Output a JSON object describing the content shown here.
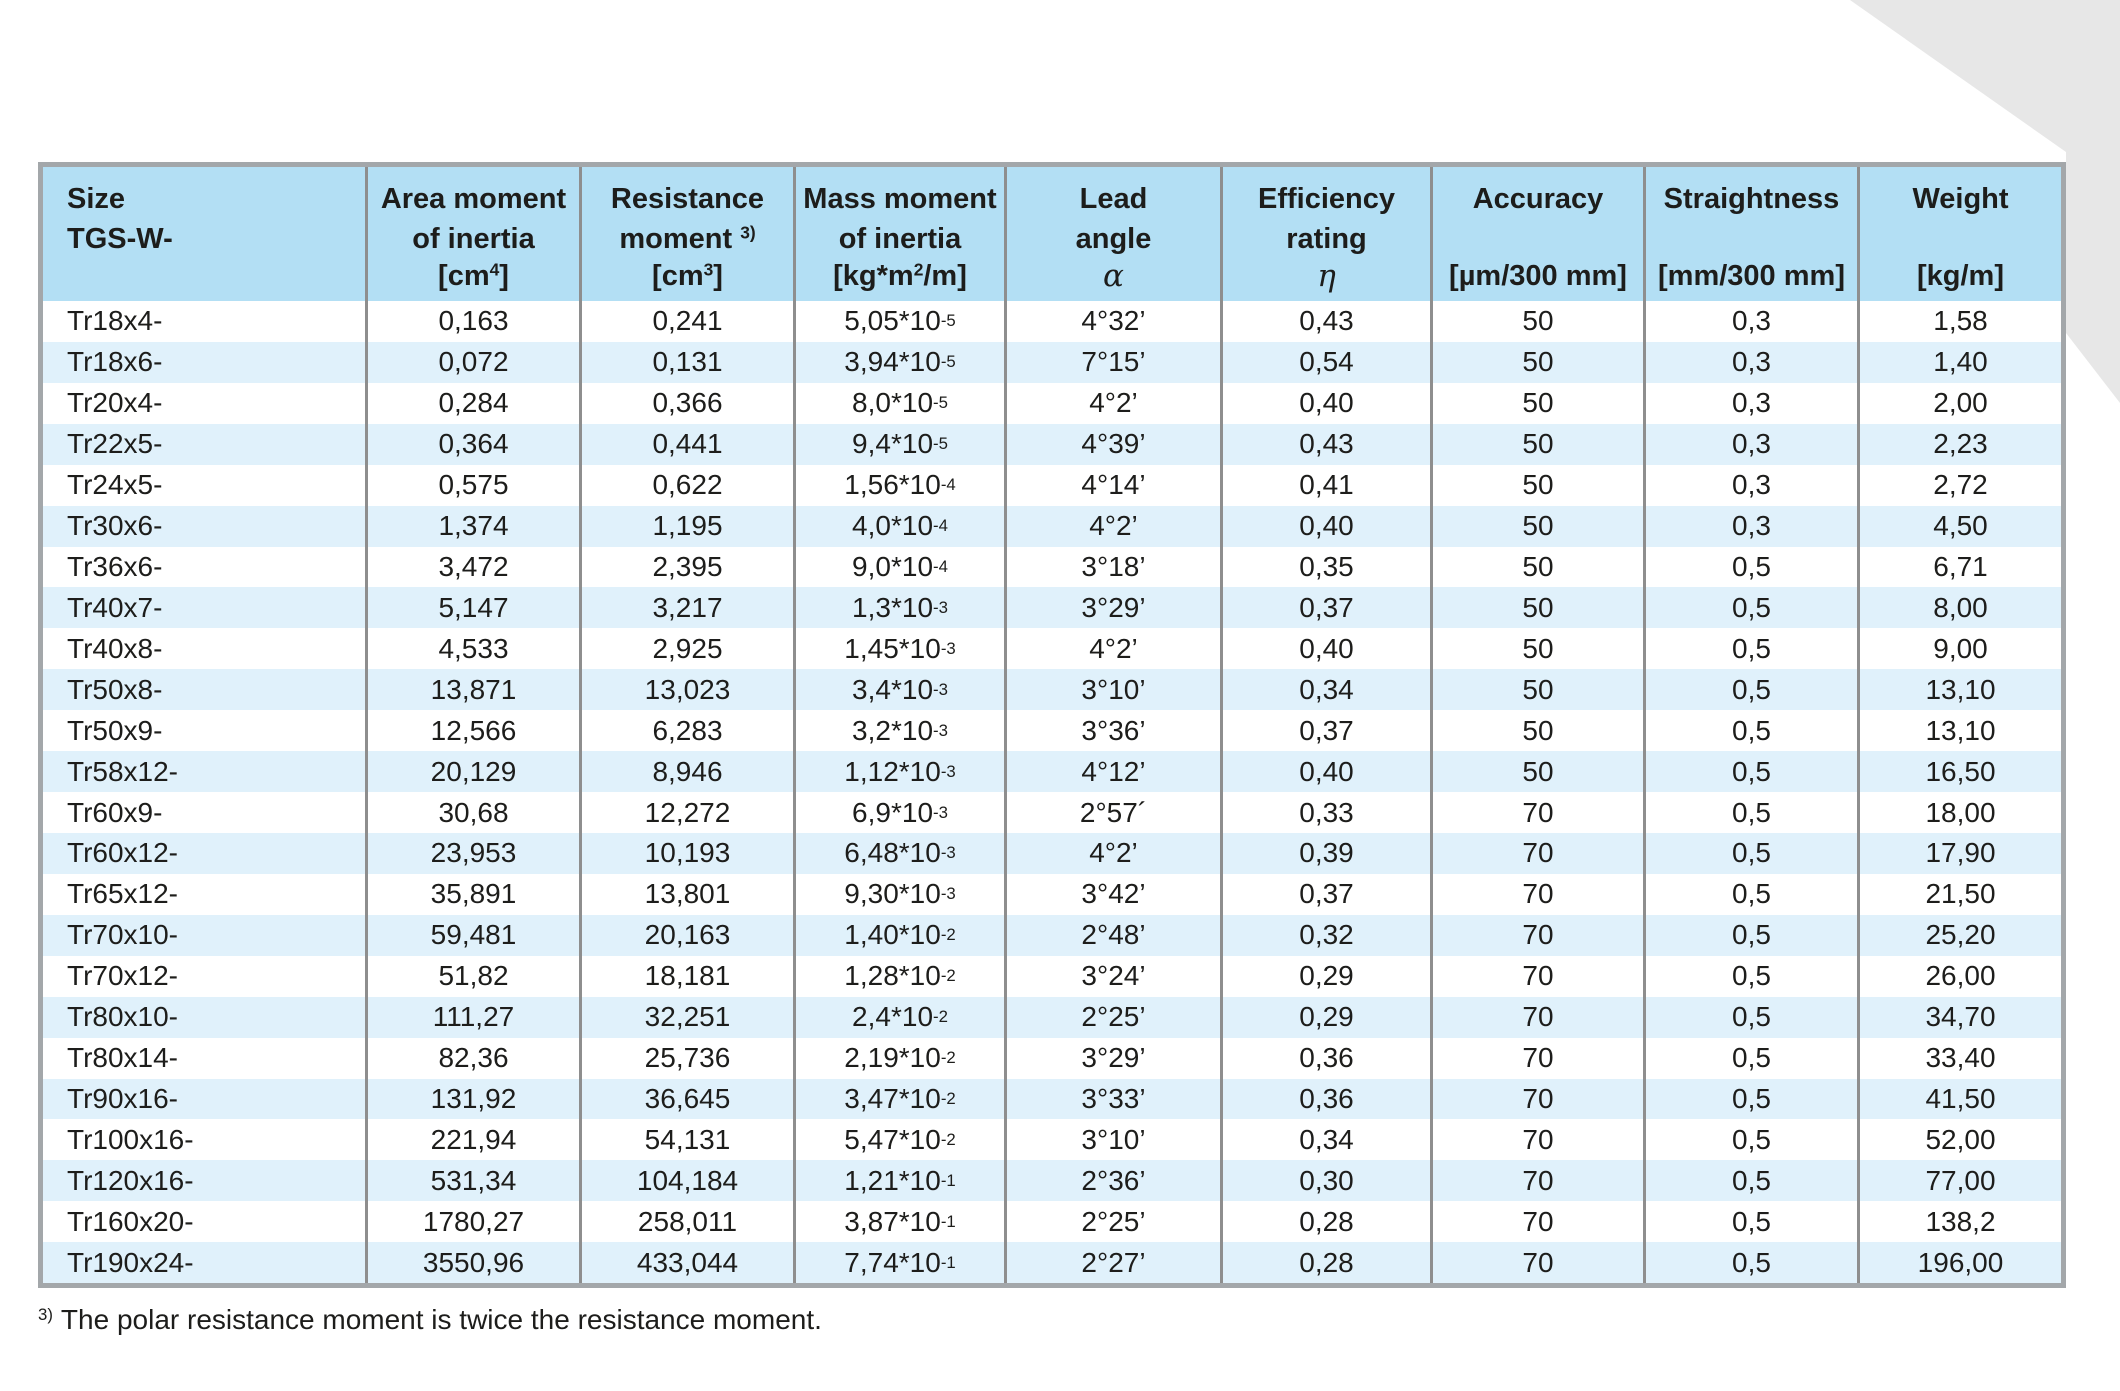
{
  "colors": {
    "header_bg": "#b3dff4",
    "stripe_bg": "#e0f1fb",
    "row_bg": "#ffffff",
    "border_outer": "#a3a7aa",
    "border_inner": "#8e8e8e",
    "decoration": "#e7e7e7",
    "text": "#1d1d1b"
  },
  "table": {
    "columns": [
      {
        "id": "size",
        "lines": [
          "Size",
          "TGS-W-"
        ],
        "unit": ""
      },
      {
        "id": "area-moment",
        "lines": [
          "Area moment",
          "of inertia"
        ],
        "unit": "[cm^{4}]"
      },
      {
        "id": "resistance-moment",
        "lines": [
          "Resistance",
          "moment ^{3)}"
        ],
        "unit": "[cm^{3}]"
      },
      {
        "id": "mass-moment",
        "lines": [
          "Mass moment",
          "of inertia"
        ],
        "unit": "[kg*m^{2}/m]"
      },
      {
        "id": "lead-angle",
        "lines": [
          "Lead",
          "angle"
        ],
        "unit": "α",
        "greek": true
      },
      {
        "id": "efficiency-rating",
        "lines": [
          "Efficiency",
          "rating"
        ],
        "unit": "η",
        "greek": true
      },
      {
        "id": "accuracy",
        "lines": [
          "Accuracy"
        ],
        "unit": "[µm/300 mm]"
      },
      {
        "id": "straightness",
        "lines": [
          "Straightness"
        ],
        "unit": "[mm/300 mm]"
      },
      {
        "id": "weight",
        "lines": [
          "Weight"
        ],
        "unit": "[kg/m]"
      }
    ],
    "rows": [
      [
        "Tr18x4-",
        "0,163",
        "0,241",
        "5,05*10^{-5}",
        "4°32’",
        "0,43",
        "50",
        "0,3",
        "1,58"
      ],
      [
        "Tr18x6-",
        "0,072",
        "0,131",
        "3,94*10^{-5}",
        "7°15’",
        "0,54",
        "50",
        "0,3",
        "1,40"
      ],
      [
        "Tr20x4-",
        "0,284",
        "0,366",
        "8,0*10^{-5}",
        "4°2’",
        "0,40",
        "50",
        "0,3",
        "2,00"
      ],
      [
        "Tr22x5-",
        "0,364",
        "0,441",
        "9,4*10^{-5}",
        "4°39’",
        "0,43",
        "50",
        "0,3",
        "2,23"
      ],
      [
        "Tr24x5-",
        "0,575",
        "0,622",
        "1,56*10^{-4}",
        "4°14’",
        "0,41",
        "50",
        "0,3",
        "2,72"
      ],
      [
        "Tr30x6-",
        "1,374",
        "1,195",
        "4,0*10^{-4}",
        "4°2’",
        "0,40",
        "50",
        "0,3",
        "4,50"
      ],
      [
        "Tr36x6-",
        "3,472",
        "2,395",
        "9,0*10^{-4}",
        "3°18’",
        "0,35",
        "50",
        "0,5",
        "6,71"
      ],
      [
        "Tr40x7-",
        "5,147",
        "3,217",
        "1,3*10^{-3}",
        "3°29’",
        "0,37",
        "50",
        "0,5",
        "8,00"
      ],
      [
        "Tr40x8-",
        "4,533",
        "2,925",
        "1,45*10^{-3}",
        "4°2’",
        "0,40",
        "50",
        "0,5",
        "9,00"
      ],
      [
        "Tr50x8-",
        "13,871",
        "13,023",
        "3,4*10^{-3}",
        "3°10’",
        "0,34",
        "50",
        "0,5",
        "13,10"
      ],
      [
        "Tr50x9-",
        "12,566",
        "6,283",
        "3,2*10^{-3}",
        "3°36’",
        "0,37",
        "50",
        "0,5",
        "13,10"
      ],
      [
        "Tr58x12-",
        "20,129",
        "8,946",
        "1,12*10^{-3}",
        "4°12’",
        "0,40",
        "50",
        "0,5",
        "16,50"
      ],
      [
        "Tr60x9-",
        "30,68",
        "12,272",
        "6,9*10^{-3}",
        "2°57´",
        "0,33",
        "70",
        "0,5",
        "18,00"
      ],
      [
        "Tr60x12-",
        "23,953",
        "10,193",
        "6,48*10^{-3}",
        "4°2’",
        "0,39",
        "70",
        "0,5",
        "17,90"
      ],
      [
        "Tr65x12-",
        "35,891",
        "13,801",
        "9,30*10^{-3}",
        "3°42’",
        "0,37",
        "70",
        "0,5",
        "21,50"
      ],
      [
        "Tr70x10-",
        "59,481",
        "20,163",
        "1,40*10^{-2}",
        "2°48’",
        "0,32",
        "70",
        "0,5",
        "25,20"
      ],
      [
        "Tr70x12-",
        "51,82",
        "18,181",
        "1,28*10^{-2}",
        "3°24’",
        "0,29",
        "70",
        "0,5",
        "26,00"
      ],
      [
        "Tr80x10-",
        "111,27",
        "32,251",
        "2,4*10^{-2}",
        "2°25’",
        "0,29",
        "70",
        "0,5",
        "34,70"
      ],
      [
        "Tr80x14-",
        "82,36",
        "25,736",
        "2,19*10^{-2}",
        "3°29’",
        "0,36",
        "70",
        "0,5",
        "33,40"
      ],
      [
        "Tr90x16-",
        "131,92",
        "36,645",
        "3,47*10^{-2}",
        "3°33’",
        "0,36",
        "70",
        "0,5",
        "41,50"
      ],
      [
        "Tr100x16-",
        "221,94",
        "54,131",
        "5,47*10^{-2}",
        "3°10’",
        "0,34",
        "70",
        "0,5",
        "52,00"
      ],
      [
        "Tr120x16-",
        "531,34",
        "104,184",
        "1,21*10^{-1}",
        "2°36’",
        "0,30",
        "70",
        "0,5",
        "77,00"
      ],
      [
        "Tr160x20-",
        "1780,27",
        "258,011",
        "3,87*10^{-1}",
        "2°25’",
        "0,28",
        "70",
        "0,5",
        "138,2"
      ],
      [
        "Tr190x24-",
        "3550,96",
        "433,044",
        "7,74*10^{-1}",
        "2°27’",
        "0,28",
        "70",
        "0,5",
        "196,00"
      ]
    ]
  },
  "footnote": {
    "marker": "3)",
    "text": "The polar resistance moment is twice the resistance moment."
  }
}
